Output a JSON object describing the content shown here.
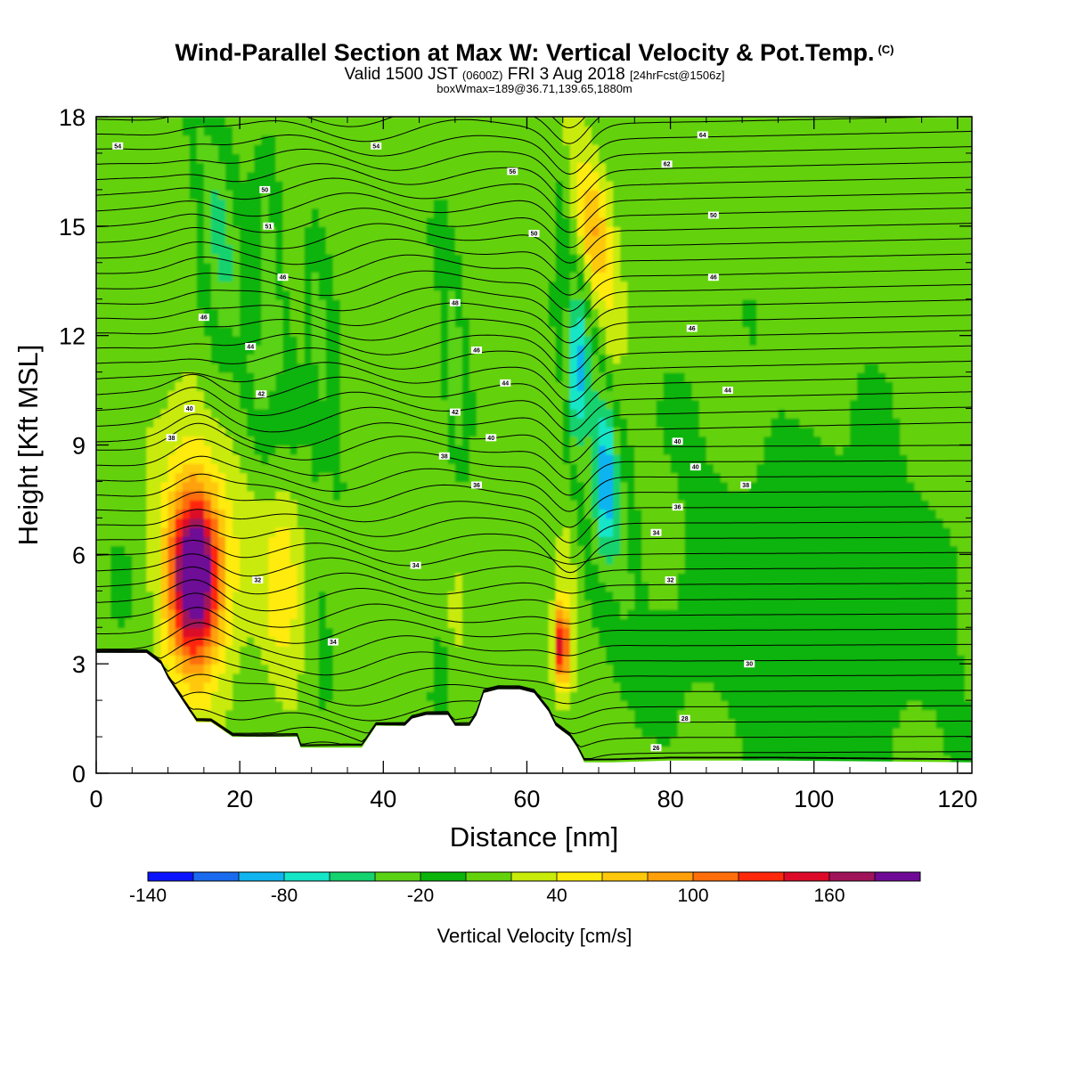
{
  "chart_data": {
    "type": "heatmap",
    "title": "Wind-Parallel Section at Max W: Vertical Velocity & Pot.Temp.",
    "title_mark": "(C)",
    "subtitle_main_a": "Valid 1500 JST",
    "subtitle_utc": "(0600Z)",
    "subtitle_main_b": "FRI 3 Aug 2018",
    "subtitle_fcst": "[24hrFcst@1506z]",
    "subtitle2": "boxWmax=189@36.71,139.65,1880m",
    "xlabel": "Distance [nm]",
    "ylabel": "Height [Kft MSL]",
    "xlim": [
      0,
      122
    ],
    "ylim": [
      0,
      18
    ],
    "x_ticks": [
      "0",
      "20",
      "40",
      "60",
      "80",
      "100",
      "120"
    ],
    "y_ticks": [
      "0",
      "3",
      "6",
      "9",
      "12",
      "15",
      "18"
    ],
    "colorbar": {
      "label": "Vertical Velocity [cm/s]",
      "levels": [
        -140,
        -120,
        -100,
        -80,
        -60,
        -40,
        -20,
        0,
        20,
        40,
        60,
        80,
        100,
        120,
        140,
        160,
        180
      ],
      "tick_labels": [
        "-140",
        "-80",
        "-20",
        "40",
        "100",
        "160"
      ],
      "tick_values": [
        -140,
        -80,
        -20,
        40,
        100,
        160
      ],
      "colors": [
        "#0a14ff",
        "#1a6af0",
        "#0fb4f0",
        "#14e6c8",
        "#14d26e",
        "#5ad214",
        "#0ab40a",
        "#64d20a",
        "#c8eb0a",
        "#ffeb0a",
        "#ffc80a",
        "#ffa00a",
        "#ff6e0a",
        "#ff280a",
        "#dc0a28",
        "#a0145a",
        "#6e0a96"
      ]
    },
    "terrain_kft": [
      [
        0,
        3.3
      ],
      [
        7,
        3.3
      ],
      [
        9,
        3.0
      ],
      [
        10,
        2.6
      ],
      [
        11,
        2.3
      ],
      [
        12,
        2.0
      ],
      [
        13,
        1.7
      ],
      [
        14,
        1.4
      ],
      [
        15,
        1.4
      ],
      [
        16,
        1.4
      ],
      [
        19,
        1.0
      ],
      [
        28,
        1.0
      ],
      [
        28.5,
        0.7
      ],
      [
        37,
        0.7
      ],
      [
        38,
        1.0
      ],
      [
        39,
        1.3
      ],
      [
        43,
        1.3
      ],
      [
        44,
        1.5
      ],
      [
        46,
        1.6
      ],
      [
        49,
        1.6
      ],
      [
        50,
        1.3
      ],
      [
        52,
        1.3
      ],
      [
        53,
        1.6
      ],
      [
        54,
        2.2
      ],
      [
        56,
        2.3
      ],
      [
        59,
        2.3
      ],
      [
        61,
        2.2
      ],
      [
        63,
        1.7
      ],
      [
        64,
        1.3
      ],
      [
        66,
        1.0
      ],
      [
        67,
        0.7
      ],
      [
        68,
        0.3
      ],
      [
        72,
        0.3
      ],
      [
        80,
        0.35
      ],
      [
        95,
        0.35
      ],
      [
        122,
        0.3
      ]
    ],
    "features": [
      {
        "x": 13.7,
        "y": 5.5,
        "w": 176,
        "sx": 2.3,
        "sy": 1.5
      },
      {
        "x": 13.7,
        "y": 5.8,
        "w": 60,
        "sx": 4.5,
        "sy": 3.0
      },
      {
        "x": 26,
        "y": 5.0,
        "w": 45,
        "sx": 2.0,
        "sy": 1.9
      },
      {
        "x": 33,
        "y": 4.0,
        "w": 20,
        "sx": 1.3,
        "sy": 1.7
      },
      {
        "x": 50,
        "y": 3.5,
        "w": 18,
        "sx": 0.9,
        "sy": 1.5
      },
      {
        "x": 64.8,
        "y": 3.5,
        "w": 130,
        "sx": 0.7,
        "sy": 0.7
      },
      {
        "x": 65.5,
        "y": 4.5,
        "w": 30,
        "sx": 1.3,
        "sy": 2.0
      },
      {
        "x": 69.0,
        "y": 15.0,
        "w": 55,
        "sx": 1.8,
        "sy": 1.2
      },
      {
        "x": 71.0,
        "y": 13.5,
        "w": 28,
        "sx": 2.0,
        "sy": 1.7
      },
      {
        "x": 67.0,
        "y": 11.0,
        "w": -75,
        "sx": 1.0,
        "sy": 1.5
      },
      {
        "x": 71.0,
        "y": 8.0,
        "w": -55,
        "sx": 1.0,
        "sy": 1.5
      },
      {
        "x": 70.0,
        "y": 10.0,
        "w": -28,
        "sx": 2.5,
        "sy": 4.5
      },
      {
        "x": 17.0,
        "y": 13.5,
        "w": -32,
        "sx": 2.0,
        "sy": 3.0
      },
      {
        "x": 24.0,
        "y": 12.5,
        "w": -26,
        "sx": 1.5,
        "sy": 3.0
      },
      {
        "x": 31.0,
        "y": 11.0,
        "w": -24,
        "sx": 1.3,
        "sy": 2.5
      },
      {
        "x": 50.0,
        "y": 11.5,
        "w": -26,
        "sx": 1.0,
        "sy": 2.0
      },
      {
        "x": 32.0,
        "y": 3.0,
        "w": -30,
        "sx": 0.8,
        "sy": 1.5
      },
      {
        "x": 48.0,
        "y": 2.0,
        "w": -28,
        "sx": 0.8,
        "sy": 1.0
      },
      {
        "x": 90.0,
        "y": 5.0,
        "w": -16,
        "sx": 11,
        "sy": 3.5
      },
      {
        "x": 110.0,
        "y": 4.0,
        "w": -16,
        "sx": 10,
        "sy": 3.5
      },
      {
        "x": 7.0,
        "y": 6.0,
        "w": -14,
        "sx": 4.0,
        "sy": 2.0
      }
    ],
    "ridge_lines": [
      {
        "x0": 14.0,
        "y0": 18.0,
        "x1": 22.0,
        "y1": 10.5,
        "w": -22,
        "s": 1.1
      },
      {
        "x0": 23.0,
        "y0": 16.0,
        "x1": 27.5,
        "y1": 10.0,
        "w": -18,
        "s": 0.9
      },
      {
        "x0": 30.0,
        "y0": 14.0,
        "x1": 34.0,
        "y1": 8.0,
        "w": -18,
        "s": 0.8
      },
      {
        "x0": 48.0,
        "y0": 14.5,
        "x1": 51.0,
        "y1": 9.0,
        "w": -18,
        "s": 0.7
      },
      {
        "x0": 65.0,
        "y0": 16.0,
        "x1": 74.0,
        "y1": 5.0,
        "w": -22,
        "s": 1.2
      },
      {
        "x0": 66.0,
        "y0": 18.0,
        "x1": 72.0,
        "y1": 12.0,
        "w": 22,
        "s": 1.4
      }
    ],
    "contour_labels": [
      {
        "x": 3,
        "y": 17.2,
        "t": "54"
      },
      {
        "x": 39,
        "y": 17.2,
        "t": "54"
      },
      {
        "x": 84.5,
        "y": 17.5,
        "t": "64"
      },
      {
        "x": 58,
        "y": 16.5,
        "t": "56"
      },
      {
        "x": 79.5,
        "y": 16.7,
        "t": "62"
      },
      {
        "x": 23.5,
        "y": 16.0,
        "t": "50"
      },
      {
        "x": 86,
        "y": 15.3,
        "t": "50"
      },
      {
        "x": 24,
        "y": 15.0,
        "t": "51"
      },
      {
        "x": 61,
        "y": 14.8,
        "t": "50"
      },
      {
        "x": 26,
        "y": 13.6,
        "t": "46"
      },
      {
        "x": 86,
        "y": 13.6,
        "t": "46"
      },
      {
        "x": 15,
        "y": 12.5,
        "t": "46"
      },
      {
        "x": 50,
        "y": 12.9,
        "t": "48"
      },
      {
        "x": 83,
        "y": 12.2,
        "t": "46"
      },
      {
        "x": 21.5,
        "y": 11.7,
        "t": "44"
      },
      {
        "x": 53,
        "y": 11.6,
        "t": "46"
      },
      {
        "x": 57,
        "y": 10.7,
        "t": "44"
      },
      {
        "x": 88,
        "y": 10.5,
        "t": "44"
      },
      {
        "x": 23,
        "y": 10.4,
        "t": "42"
      },
      {
        "x": 13,
        "y": 10.0,
        "t": "40"
      },
      {
        "x": 50,
        "y": 9.9,
        "t": "42"
      },
      {
        "x": 55,
        "y": 9.2,
        "t": "40"
      },
      {
        "x": 81,
        "y": 9.1,
        "t": "40"
      },
      {
        "x": 10.5,
        "y": 9.2,
        "t": "38"
      },
      {
        "x": 48.5,
        "y": 8.7,
        "t": "38"
      },
      {
        "x": 83.5,
        "y": 8.4,
        "t": "40"
      },
      {
        "x": 53,
        "y": 7.9,
        "t": "36"
      },
      {
        "x": 90.5,
        "y": 7.9,
        "t": "38"
      },
      {
        "x": 81,
        "y": 7.3,
        "t": "36"
      },
      {
        "x": 78,
        "y": 6.6,
        "t": "34"
      },
      {
        "x": 44.5,
        "y": 5.7,
        "t": "34"
      },
      {
        "x": 22.5,
        "y": 5.3,
        "t": "32"
      },
      {
        "x": 80,
        "y": 5.3,
        "t": "32"
      },
      {
        "x": 33,
        "y": 3.6,
        "t": "34"
      },
      {
        "x": 91,
        "y": 3.0,
        "t": "30"
      },
      {
        "x": 82,
        "y": 1.5,
        "t": "28"
      },
      {
        "x": 78,
        "y": 0.7,
        "t": "26"
      }
    ],
    "grid": false
  }
}
